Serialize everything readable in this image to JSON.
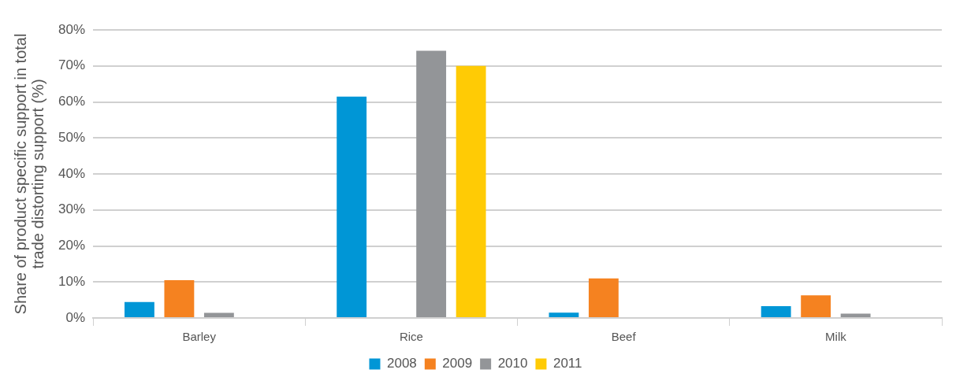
{
  "chart_data": {
    "type": "bar",
    "ylabel": "Share of product specific support in total trade distorting support (%)",
    "categories": [
      "Barley",
      "Rice",
      "Beef",
      "Milk"
    ],
    "series": [
      {
        "name": "2008",
        "color": "#0096d6",
        "values": [
          4.4,
          61.5,
          1.5,
          3.3
        ]
      },
      {
        "name": "2009",
        "color": "#f58220",
        "values": [
          10.5,
          null,
          11,
          6.3
        ]
      },
      {
        "name": "2010",
        "color": "#939598",
        "values": [
          1.4,
          74.2,
          null,
          1.2
        ]
      },
      {
        "name": "2011",
        "color": "#ffcb05",
        "values": [
          null,
          70,
          null,
          null
        ]
      }
    ],
    "ylim": [
      0,
      80
    ],
    "yticks": [
      {
        "value": 0,
        "label": "0%"
      },
      {
        "value": 10,
        "label": "10%"
      },
      {
        "value": 20,
        "label": "20%"
      },
      {
        "value": 30,
        "label": "30%"
      },
      {
        "value": 40,
        "label": "40%"
      },
      {
        "value": 50,
        "label": "50%"
      },
      {
        "value": 60,
        "label": "60%"
      },
      {
        "value": 70,
        "label": "70%"
      },
      {
        "value": 80,
        "label": "80%"
      }
    ],
    "grid": "y",
    "legend": "bottom"
  }
}
